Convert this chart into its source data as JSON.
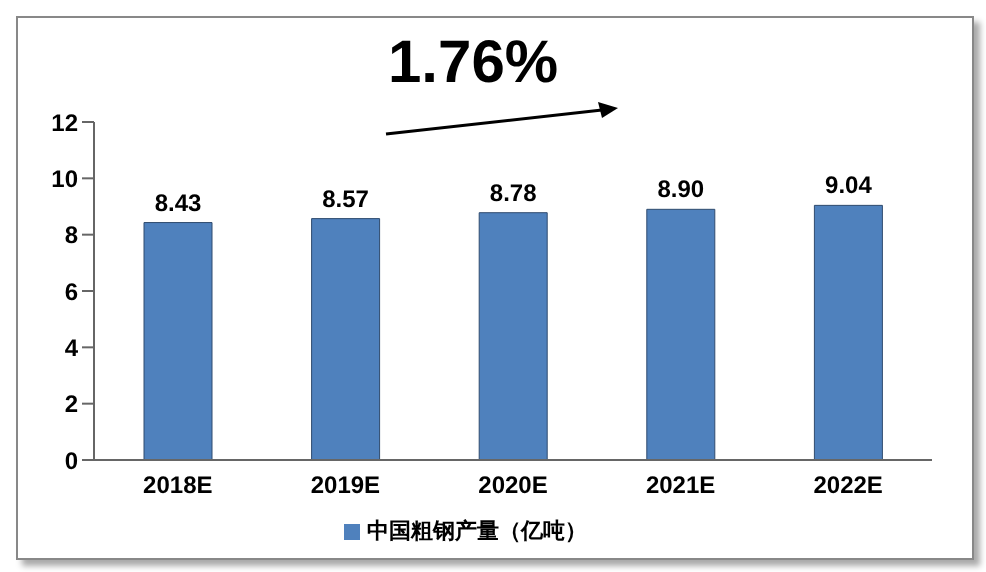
{
  "chart_data": {
    "type": "bar",
    "categories": [
      "2018E",
      "2019E",
      "2020E",
      "2021E",
      "2022E"
    ],
    "series": [
      {
        "name": "中国粗钢产量（亿吨）",
        "color": "#4f81bd",
        "values": [
          8.43,
          8.57,
          8.78,
          8.9,
          9.04
        ],
        "value_labels": [
          "8.43",
          "8.57",
          "8.78",
          "8.90",
          "9.04"
        ]
      }
    ],
    "ylim": [
      0,
      12
    ],
    "yticks": [
      0,
      2,
      4,
      6,
      8,
      10,
      12
    ],
    "legend": "bottom",
    "annotations": [
      "1.76%"
    ]
  }
}
